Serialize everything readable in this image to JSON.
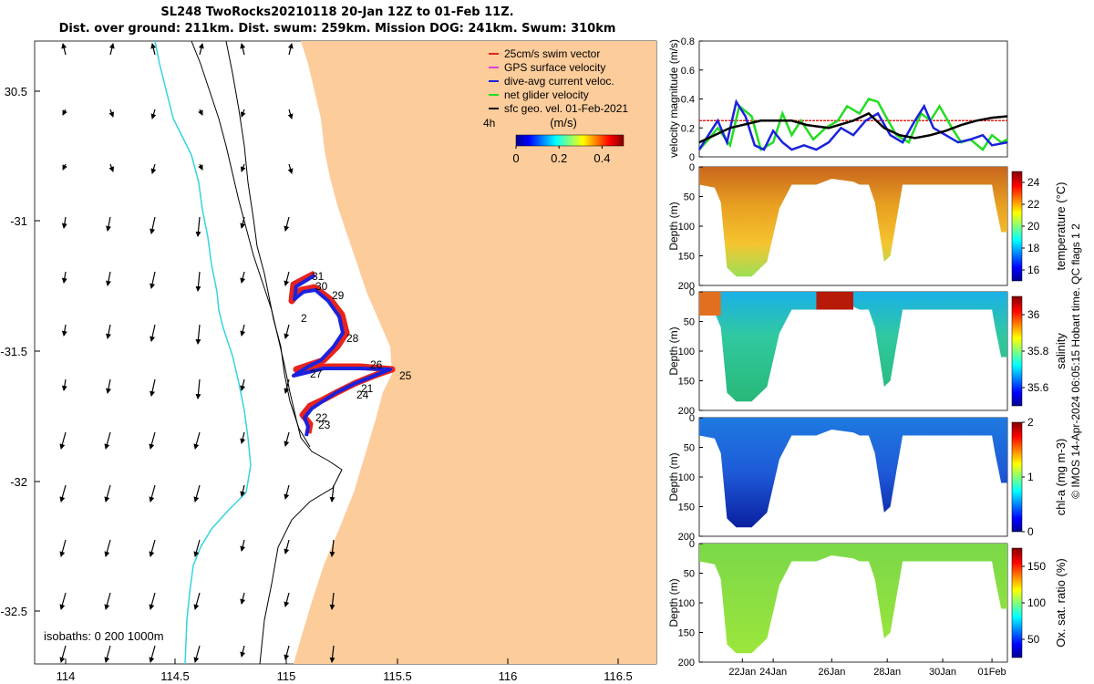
{
  "title": {
    "line1": "SL248 TwoRocks20210118 20-Jan 12Z to 01-Feb 11Z.",
    "line2": "Dist. over ground: 211km. Dist. swum: 259km. Mission DOG: 241km. Swum: 310km"
  },
  "colors": {
    "land": "#fccc9b",
    "isobath_shallow": "#35d4de",
    "swim": "#e8231c",
    "gps": "#e040e0",
    "current": "#1a22dd",
    "net": "#22dd22",
    "geo": "#000000"
  },
  "map": {
    "x_ticks": [
      "114",
      "114.5",
      "115",
      "115.5",
      "116",
      "116.5"
    ],
    "y_ticks": [
      "30.5",
      "-31",
      "-31.5",
      "-32",
      "-32.5"
    ],
    "isobaths_label": "isobaths: 0   200  1000m",
    "legend": [
      {
        "label": "25cm/s swim vector",
        "color": "#e8231c"
      },
      {
        "label": "GPS surface velocity",
        "color": "#e040e0"
      },
      {
        "label": "dive-avg current veloc.",
        "color": "#1a22dd"
      },
      {
        "label": "net glider velocity",
        "color": "#22dd22"
      },
      {
        "label": "sfc geo. vel. 01-Feb-2021",
        "color": "#000000"
      }
    ],
    "colorbar": {
      "label": "(m/s)",
      "ticks": [
        "0",
        "0.2",
        "0.4"
      ],
      "range": [
        0,
        0.5
      ]
    },
    "interval_label": "4h",
    "day_labels": [
      "31",
      "30",
      "29",
      "2",
      "28",
      "26",
      "27",
      "25",
      "21",
      "24",
      "22",
      "23"
    ]
  },
  "chart_data": [
    {
      "type": "line",
      "title": "velocity magnitude",
      "ylabel": "velocity magnitude (m/s)",
      "ylim": [
        0,
        0.8
      ],
      "yticks": [
        "0",
        "0.2",
        "0.4",
        "0.6",
        "0.8"
      ],
      "series": [
        {
          "name": "25cm/s swim vector",
          "color": "#e8231c",
          "x": [
            0,
            1
          ],
          "values": [
            0.25,
            0.25
          ]
        },
        {
          "name": "net glider velocity",
          "color": "#22dd22",
          "x": [
            0,
            0.03,
            0.06,
            0.1,
            0.13,
            0.17,
            0.2,
            0.24,
            0.27,
            0.3,
            0.33,
            0.37,
            0.41,
            0.45,
            0.48,
            0.52,
            0.55,
            0.58,
            0.6,
            0.64,
            0.68,
            0.72,
            0.75,
            0.78,
            0.82,
            0.85,
            0.88,
            0.92,
            0.95,
            0.98,
            1
          ],
          "values": [
            0.05,
            0.12,
            0.2,
            0.08,
            0.35,
            0.28,
            0.05,
            0.1,
            0.3,
            0.15,
            0.25,
            0.12,
            0.2,
            0.25,
            0.35,
            0.3,
            0.4,
            0.38,
            0.3,
            0.15,
            0.1,
            0.3,
            0.25,
            0.35,
            0.2,
            0.1,
            0.12,
            0.05,
            0.15,
            0.1,
            0.12
          ]
        },
        {
          "name": "dive-avg current veloc.",
          "color": "#1a22dd",
          "x": [
            0,
            0.03,
            0.06,
            0.09,
            0.12,
            0.15,
            0.18,
            0.21,
            0.24,
            0.27,
            0.3,
            0.34,
            0.38,
            0.42,
            0.46,
            0.5,
            0.54,
            0.58,
            0.62,
            0.66,
            0.7,
            0.73,
            0.76,
            0.8,
            0.84,
            0.88,
            0.92,
            0.95,
            1
          ],
          "values": [
            0.05,
            0.15,
            0.25,
            0.1,
            0.38,
            0.28,
            0.08,
            0.05,
            0.18,
            0.1,
            0.05,
            0.08,
            0.05,
            0.1,
            0.2,
            0.15,
            0.25,
            0.3,
            0.15,
            0.1,
            0.25,
            0.35,
            0.2,
            0.15,
            0.1,
            0.12,
            0.15,
            0.08,
            0.1
          ]
        },
        {
          "name": "sfc geo. vel.",
          "color": "#000000",
          "x": [
            0,
            0.1,
            0.2,
            0.3,
            0.35,
            0.42,
            0.5,
            0.55,
            0.6,
            0.65,
            0.7,
            0.75,
            0.8,
            0.85,
            0.9,
            0.95,
            1
          ],
          "values": [
            0.1,
            0.2,
            0.25,
            0.25,
            0.22,
            0.2,
            0.25,
            0.3,
            0.2,
            0.15,
            0.13,
            0.15,
            0.18,
            0.22,
            0.25,
            0.27,
            0.28
          ]
        }
      ]
    },
    {
      "type": "heatmap",
      "title": "temperature",
      "ylabel": "Depth (m)",
      "yticks": [
        "0",
        "50",
        "100",
        "150",
        "200"
      ],
      "ylim": [
        0,
        200
      ],
      "colorbar_label": "temperature (°C)",
      "colorbar_ticks": [
        "16",
        "18",
        "20",
        "22",
        "24"
      ],
      "colorbar_range": [
        15,
        25
      ]
    },
    {
      "type": "heatmap",
      "title": "salinity",
      "ylabel": "Depth (m)",
      "yticks": [
        "0",
        "50",
        "100",
        "150",
        "200"
      ],
      "ylim": [
        0,
        200
      ],
      "colorbar_label": "salinity",
      "colorbar_ticks": [
        "35.6",
        "35.8",
        "36"
      ],
      "colorbar_range": [
        35.5,
        36.1
      ]
    },
    {
      "type": "heatmap",
      "title": "chl-a",
      "ylabel": "Depth (m)",
      "yticks": [
        "0",
        "50",
        "100",
        "150",
        "200"
      ],
      "ylim": [
        0,
        200
      ],
      "colorbar_label": "chl-a (mg m-3)",
      "colorbar_ticks": [
        "0",
        "1",
        "2"
      ],
      "colorbar_range": [
        0,
        2
      ]
    },
    {
      "type": "heatmap",
      "title": "oxygen",
      "ylabel": "Depth (m)",
      "yticks": [
        "0",
        "50",
        "100",
        "150",
        "200"
      ],
      "ylim": [
        0,
        200
      ],
      "colorbar_label": "Ox. sat. ratio (%)",
      "colorbar_ticks": [
        "50",
        "100",
        "150"
      ],
      "colorbar_range": [
        25,
        175
      ],
      "xticks": [
        "22Jan",
        "24Jan",
        "26Jan",
        "28Jan",
        "30Jan",
        "01Feb"
      ]
    }
  ],
  "footer": "© IMOS 14-Apr-2024 06:05:15 Hobart time. QC flags 1  2"
}
